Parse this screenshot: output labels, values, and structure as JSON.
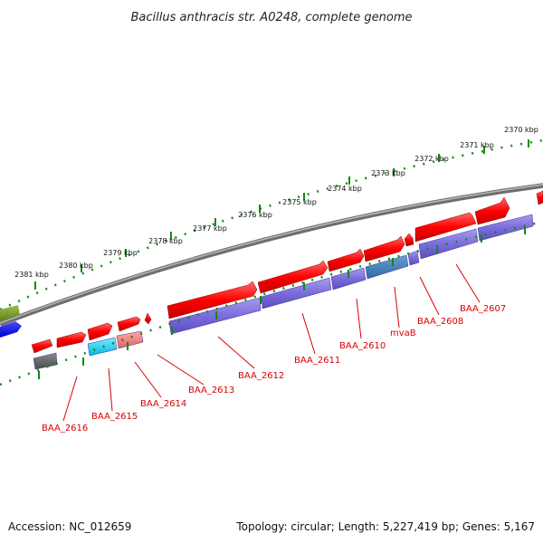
{
  "title": "Bacillus anthracis str. A0248, complete genome",
  "footer": {
    "accession": "Accession: NC_012659",
    "topology": "Topology: circular; Length: 5,227,419 bp; Genes: 5,167"
  },
  "colors": {
    "backbone": "#808080",
    "cds": "#ff0000",
    "protein": "#7a6ad8",
    "tick": "#138a13",
    "label": "#d90000"
  },
  "ticks": [
    "2370 kbp",
    "2371 kbp",
    "2372 kbp",
    "2373 kbp",
    "2374 kbp",
    "2375 kbp",
    "2376 kbp",
    "2377 kbp",
    "2378 kbp",
    "2379 kbp",
    "2380 kbp",
    "2381 kbp"
  ],
  "gene_labels": [
    "BAA_2607",
    "BAA_2608",
    "mvaB",
    "BAA_2610",
    "BAA_2611",
    "BAA_2612",
    "BAA_2613",
    "BAA_2614",
    "BAA_2615",
    "BAA_2616"
  ]
}
